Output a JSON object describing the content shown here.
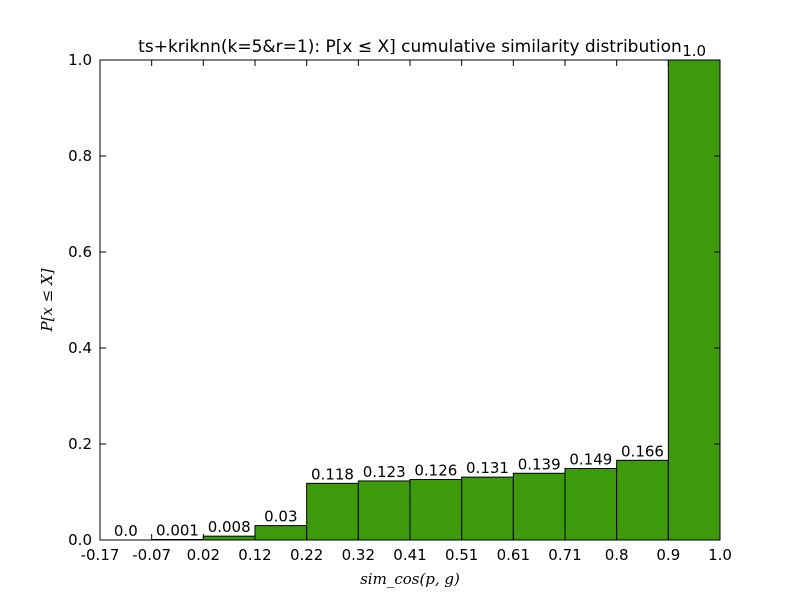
{
  "chart_data": {
    "type": "bar",
    "title": "ts+kriknn(k=5&r=1): P[x ≤ X] cumulative similarity distribution",
    "xlabel": "sim_cos(p, g)",
    "ylabel": "P[x ≤ X]",
    "bin_edges": [
      -0.17,
      -0.07,
      0.02,
      0.12,
      0.22,
      0.32,
      0.41,
      0.51,
      0.61,
      0.71,
      0.8,
      0.9,
      1.0
    ],
    "x_tick_labels": [
      "-0.17",
      "-0.07",
      "0.02",
      "0.12",
      "0.22",
      "0.32",
      "0.41",
      "0.51",
      "0.61",
      "0.71",
      "0.8",
      "0.9",
      "1.0"
    ],
    "values": [
      0.0,
      0.001,
      0.008,
      0.03,
      0.118,
      0.123,
      0.126,
      0.131,
      0.139,
      0.149,
      0.166,
      1.0
    ],
    "data_labels": [
      "0.0",
      "0.001",
      "0.008",
      "0.03",
      "0.118",
      "0.123",
      "0.126",
      "0.131",
      "0.139",
      "0.149",
      "0.166",
      "1.0"
    ],
    "ylim": [
      0.0,
      1.0
    ],
    "y_ticks": [
      0.0,
      0.2,
      0.4,
      0.6,
      0.8,
      1.0
    ],
    "y_tick_labels": [
      "0.0",
      "0.2",
      "0.4",
      "0.6",
      "0.8",
      "1.0"
    ],
    "bar_color": "#3d9a0b",
    "grid": false,
    "legend": "none"
  }
}
